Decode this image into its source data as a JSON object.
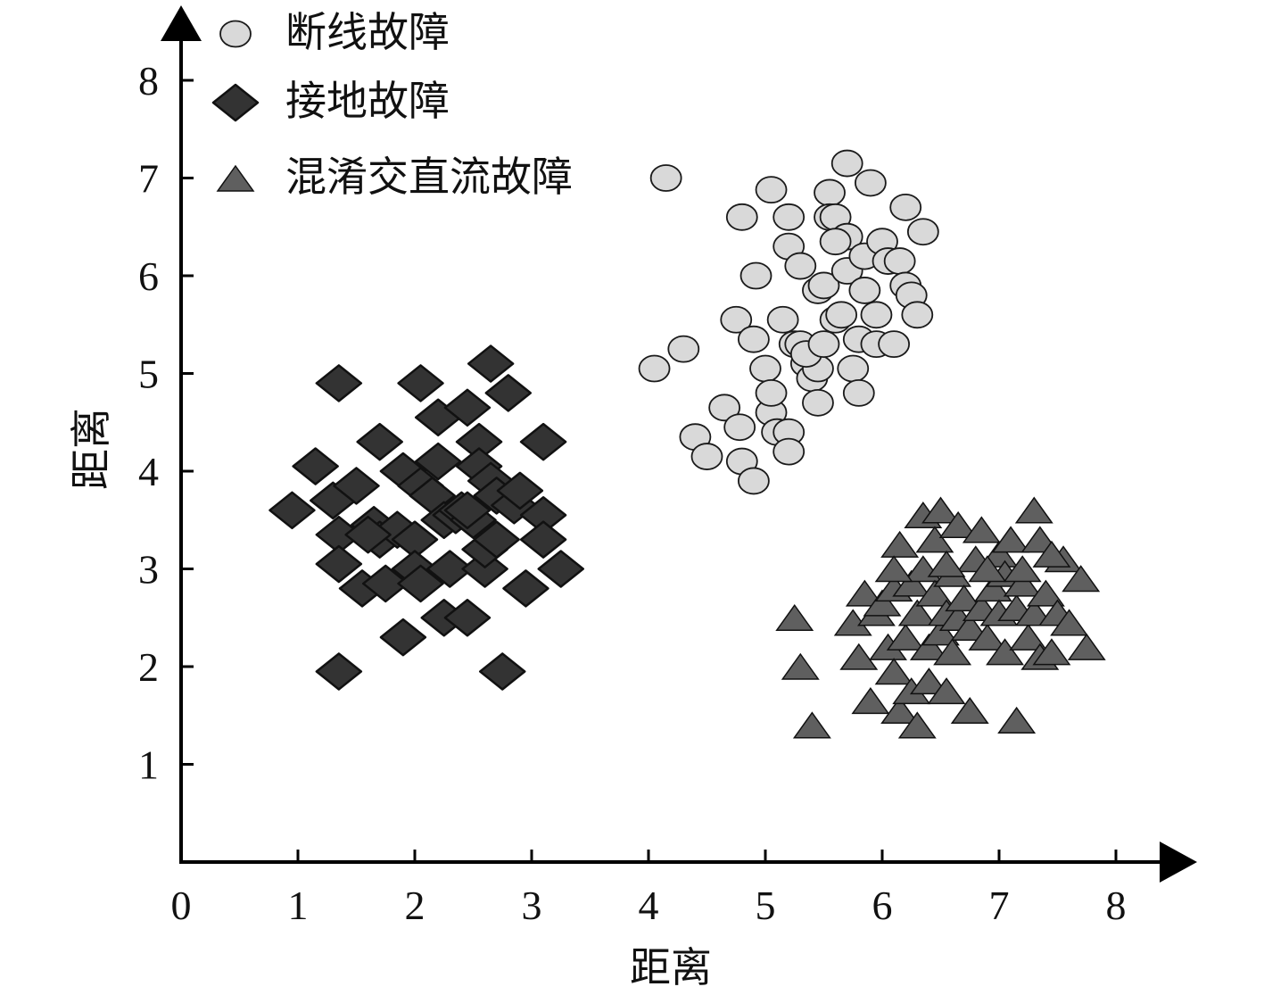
{
  "chart_data": {
    "type": "scatter",
    "xlabel": "距离",
    "ylabel": "距离",
    "xlim": [
      0,
      8
    ],
    "ylim": [
      0,
      8
    ],
    "x_ticks": [
      "0",
      "1",
      "2",
      "3",
      "4",
      "5",
      "6",
      "7",
      "8"
    ],
    "y_ticks": [
      "1",
      "2",
      "3",
      "4",
      "5",
      "6",
      "7",
      "8"
    ],
    "grid": false,
    "legend_position": "top-left",
    "series": [
      {
        "name": "断线故障",
        "marker": "circle",
        "color": "#d9d9d9",
        "points": [
          [
            4.15,
            7.0
          ],
          [
            5.7,
            7.15
          ],
          [
            4.05,
            5.05
          ],
          [
            4.3,
            5.25
          ],
          [
            4.4,
            4.35
          ],
          [
            4.5,
            4.15
          ],
          [
            4.65,
            4.65
          ],
          [
            4.75,
            5.55
          ],
          [
            4.78,
            4.45
          ],
          [
            4.8,
            4.1
          ],
          [
            4.8,
            6.6
          ],
          [
            4.9,
            3.9
          ],
          [
            4.9,
            5.35
          ],
          [
            4.92,
            6.0
          ],
          [
            5.0,
            5.05
          ],
          [
            5.05,
            4.6
          ],
          [
            5.05,
            4.8
          ],
          [
            5.1,
            4.4
          ],
          [
            5.2,
            4.4
          ],
          [
            5.2,
            4.2
          ],
          [
            5.15,
            5.55
          ],
          [
            5.05,
            6.88
          ],
          [
            5.2,
            6.6
          ],
          [
            5.2,
            6.3
          ],
          [
            5.25,
            5.3
          ],
          [
            5.3,
            5.3
          ],
          [
            5.3,
            6.1
          ],
          [
            5.35,
            5.1
          ],
          [
            5.4,
            4.95
          ],
          [
            5.45,
            5.05
          ],
          [
            5.45,
            5.85
          ],
          [
            5.5,
            5.9
          ],
          [
            5.55,
            6.85
          ],
          [
            5.55,
            6.6
          ],
          [
            5.6,
            6.6
          ],
          [
            5.6,
            5.55
          ],
          [
            5.65,
            5.6
          ],
          [
            5.7,
            6.4
          ],
          [
            5.7,
            6.05
          ],
          [
            5.75,
            5.05
          ],
          [
            5.8,
            5.35
          ],
          [
            5.85,
            6.2
          ],
          [
            5.85,
            5.85
          ],
          [
            5.9,
            6.95
          ],
          [
            5.95,
            5.3
          ],
          [
            5.95,
            5.6
          ],
          [
            6.0,
            6.35
          ],
          [
            6.05,
            6.15
          ],
          [
            6.1,
            5.3
          ],
          [
            6.15,
            6.15
          ],
          [
            6.2,
            5.9
          ],
          [
            6.25,
            5.8
          ],
          [
            6.3,
            5.6
          ],
          [
            6.35,
            6.45
          ],
          [
            6.2,
            6.7
          ],
          [
            5.45,
            4.7
          ],
          [
            5.8,
            4.8
          ],
          [
            5.35,
            5.2
          ],
          [
            5.6,
            6.35
          ],
          [
            5.5,
            5.3
          ]
        ]
      },
      {
        "name": "接地故障",
        "marker": "diamond",
        "color": "#333333",
        "points": [
          [
            0.95,
            3.6
          ],
          [
            1.15,
            4.05
          ],
          [
            1.35,
            4.9
          ],
          [
            1.3,
            3.7
          ],
          [
            1.35,
            3.35
          ],
          [
            1.35,
            3.05
          ],
          [
            1.35,
            1.95
          ],
          [
            1.5,
            3.85
          ],
          [
            1.55,
            2.8
          ],
          [
            1.65,
            3.45
          ],
          [
            1.7,
            4.3
          ],
          [
            1.7,
            3.3
          ],
          [
            1.75,
            2.85
          ],
          [
            1.85,
            3.4
          ],
          [
            1.9,
            4.0
          ],
          [
            1.9,
            2.3
          ],
          [
            2.0,
            3.3
          ],
          [
            2.0,
            3.0
          ],
          [
            2.05,
            2.85
          ],
          [
            2.05,
            3.85
          ],
          [
            2.05,
            4.9
          ],
          [
            2.15,
            3.75
          ],
          [
            2.2,
            4.1
          ],
          [
            2.2,
            4.55
          ],
          [
            2.25,
            3.5
          ],
          [
            2.25,
            2.5
          ],
          [
            2.3,
            3.0
          ],
          [
            2.35,
            3.55
          ],
          [
            2.4,
            3.6
          ],
          [
            2.45,
            4.65
          ],
          [
            2.45,
            2.5
          ],
          [
            2.5,
            3.5
          ],
          [
            2.55,
            4.3
          ],
          [
            2.55,
            4.05
          ],
          [
            2.6,
            3.0
          ],
          [
            2.6,
            3.2
          ],
          [
            2.65,
            5.1
          ],
          [
            2.65,
            3.9
          ],
          [
            2.7,
            3.3
          ],
          [
            2.7,
            3.75
          ],
          [
            2.75,
            1.95
          ],
          [
            2.8,
            4.8
          ],
          [
            2.85,
            3.65
          ],
          [
            2.9,
            3.8
          ],
          [
            2.95,
            2.8
          ],
          [
            3.1,
            3.55
          ],
          [
            3.1,
            3.3
          ],
          [
            3.1,
            4.3
          ],
          [
            3.25,
            3.0
          ],
          [
            1.6,
            3.35
          ],
          [
            2.45,
            3.6
          ]
        ]
      },
      {
        "name": "混淆交直流故障",
        "marker": "triangle",
        "color": "#5f5f5f",
        "points": [
          [
            5.25,
            2.5
          ],
          [
            5.3,
            2.0
          ],
          [
            5.4,
            1.4
          ],
          [
            5.75,
            2.45
          ],
          [
            5.8,
            2.1
          ],
          [
            5.85,
            2.75
          ],
          [
            5.9,
            1.65
          ],
          [
            5.95,
            2.55
          ],
          [
            6.0,
            2.65
          ],
          [
            6.05,
            2.2
          ],
          [
            6.1,
            1.95
          ],
          [
            6.1,
            2.8
          ],
          [
            6.15,
            1.55
          ],
          [
            6.15,
            3.25
          ],
          [
            6.2,
            2.3
          ],
          [
            6.25,
            1.75
          ],
          [
            6.25,
            2.85
          ],
          [
            6.3,
            1.4
          ],
          [
            6.3,
            2.55
          ],
          [
            6.35,
            3.55
          ],
          [
            6.35,
            3.0
          ],
          [
            6.4,
            1.85
          ],
          [
            6.4,
            2.2
          ],
          [
            6.45,
            2.75
          ],
          [
            6.45,
            3.3
          ],
          [
            6.5,
            2.35
          ],
          [
            6.5,
            3.6
          ],
          [
            6.55,
            1.75
          ],
          [
            6.55,
            2.55
          ],
          [
            6.6,
            2.95
          ],
          [
            6.6,
            2.15
          ],
          [
            6.65,
            3.45
          ],
          [
            6.65,
            2.5
          ],
          [
            6.7,
            2.7
          ],
          [
            6.75,
            2.4
          ],
          [
            6.75,
            1.55
          ],
          [
            6.8,
            3.1
          ],
          [
            6.85,
            3.4
          ],
          [
            6.85,
            2.6
          ],
          [
            6.9,
            2.3
          ],
          [
            6.95,
            2.8
          ],
          [
            7.0,
            3.15
          ],
          [
            7.0,
            2.55
          ],
          [
            7.05,
            2.15
          ],
          [
            7.05,
            2.95
          ],
          [
            7.1,
            3.3
          ],
          [
            7.15,
            2.6
          ],
          [
            7.15,
            1.45
          ],
          [
            7.2,
            2.85
          ],
          [
            7.2,
            3.0
          ],
          [
            7.25,
            2.3
          ],
          [
            7.3,
            3.6
          ],
          [
            7.3,
            2.55
          ],
          [
            7.35,
            2.1
          ],
          [
            7.35,
            3.3
          ],
          [
            7.4,
            2.75
          ],
          [
            7.45,
            2.15
          ],
          [
            7.5,
            2.55
          ],
          [
            7.55,
            3.1
          ],
          [
            7.6,
            2.45
          ],
          [
            7.7,
            2.9
          ],
          [
            7.75,
            2.2
          ],
          [
            6.1,
            3.0
          ],
          [
            6.55,
            3.05
          ],
          [
            6.9,
            3.0
          ],
          [
            7.45,
            3.15
          ]
        ]
      }
    ]
  }
}
